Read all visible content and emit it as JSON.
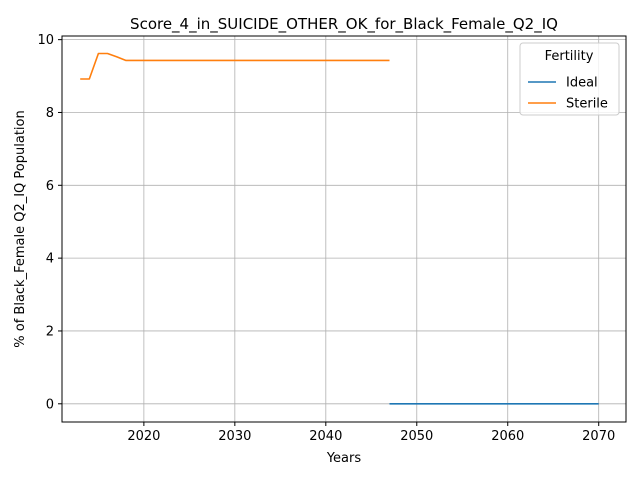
{
  "chart_data": {
    "type": "line",
    "title": "Score_4_in_SUICIDE_OTHER_OK_for_Black_Female_Q2_IQ",
    "xlabel": "Years",
    "ylabel": "% of Black_Female Q2_IQ Population",
    "xlim": [
      2011,
      2073
    ],
    "ylim": [
      -0.5,
      10.1
    ],
    "xticks": [
      2020,
      2030,
      2040,
      2050,
      2060,
      2070
    ],
    "yticks": [
      0,
      2,
      4,
      6,
      8,
      10
    ],
    "grid": true,
    "legend": {
      "title": "Fertility",
      "placement": "top-right"
    },
    "series": [
      {
        "name": "Ideal",
        "color": "#1f77b4",
        "points": [
          [
            2047,
            0.0
          ],
          [
            2070,
            0.0
          ]
        ]
      },
      {
        "name": "Sterile",
        "color": "#ff7f0e",
        "points": [
          [
            2013,
            8.92
          ],
          [
            2014,
            8.92
          ],
          [
            2015,
            9.62
          ],
          [
            2016,
            9.62
          ],
          [
            2017,
            9.53
          ],
          [
            2018,
            9.43
          ],
          [
            2047,
            9.43
          ]
        ]
      }
    ]
  }
}
